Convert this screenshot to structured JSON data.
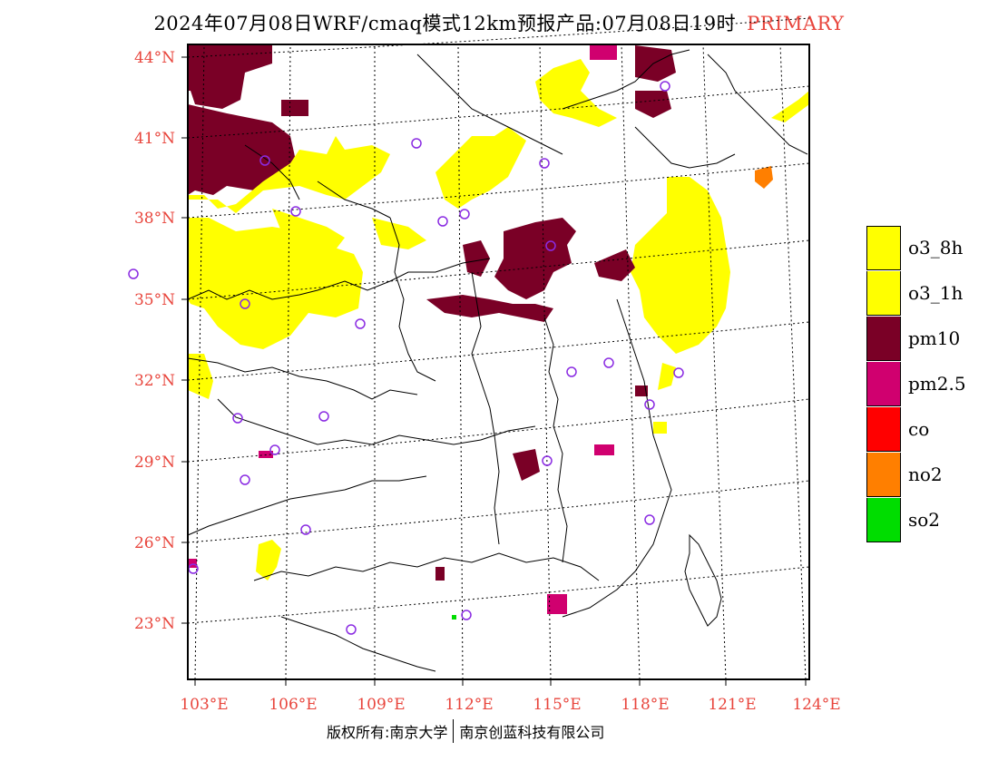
{
  "title": {
    "main": "2024年07月08日WRF/cmaq模式12km预报产品:07月08日19时",
    "tag": "PRIMARY"
  },
  "axes": {
    "lat_labels": [
      "44°N",
      "41°N",
      "38°N",
      "35°N",
      "32°N",
      "29°N",
      "26°N",
      "23°N"
    ],
    "lon_labels": [
      "103°E",
      "106°E",
      "109°E",
      "112°E",
      "115°E",
      "118°E",
      "121°E",
      "124°E"
    ]
  },
  "legend": {
    "items": [
      {
        "label": "o3_8h",
        "color": "#ffff00"
      },
      {
        "label": "o3_1h",
        "color": "#ffff00"
      },
      {
        "label": "pm10",
        "color": "#7a0026"
      },
      {
        "label": "pm2.5",
        "color": "#d0006f"
      },
      {
        "label": "co",
        "color": "#ff0000"
      },
      {
        "label": "no2",
        "color": "#ff7f00"
      },
      {
        "label": "so2",
        "color": "#00dd00"
      }
    ]
  },
  "footer": {
    "left": "版权所有:南京大学",
    "right": "南京创蓝科技有限公司"
  }
}
